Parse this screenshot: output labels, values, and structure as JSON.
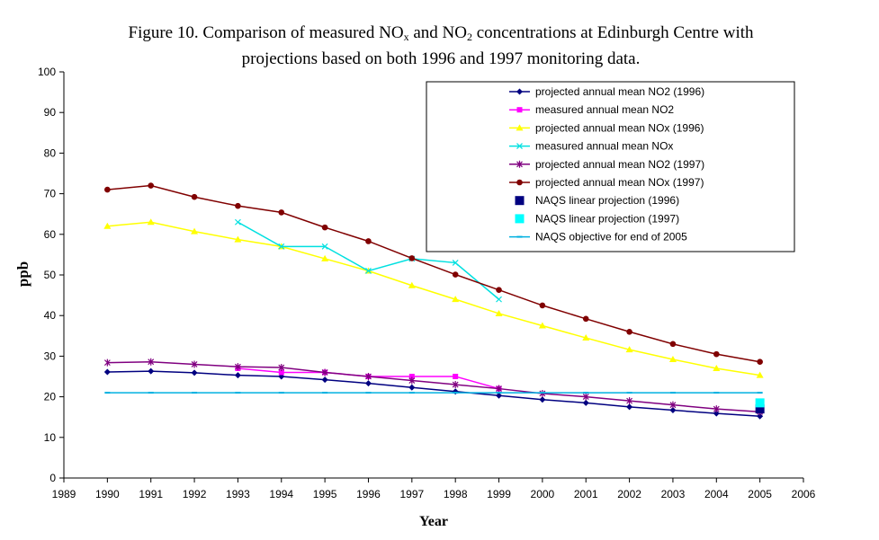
{
  "title": {
    "line1_a": "Figure 10. Comparison of measured NO",
    "line1_sub1": "x",
    "line1_b": " and NO",
    "line1_sub2": "2",
    "line1_c": " concentrations at Edinburgh Centre with",
    "line2": "projections based on both 1996 and 1997 monitoring data."
  },
  "chart_data": {
    "type": "line",
    "xlabel": "Year",
    "ylabel": "ppb",
    "xlim": [
      1989,
      2006
    ],
    "ylim": [
      0,
      100
    ],
    "x_ticks": [
      "1989",
      "1990",
      "1991",
      "1992",
      "1993",
      "1994",
      "1995",
      "1996",
      "1997",
      "1998",
      "1999",
      "2000",
      "2001",
      "2002",
      "2003",
      "2004",
      "2005",
      "2006"
    ],
    "y_ticks": [
      "0",
      "10",
      "20",
      "30",
      "40",
      "50",
      "60",
      "70",
      "80",
      "90",
      "100"
    ],
    "grid": false,
    "legend_position": "top-right",
    "series": [
      {
        "name": "projected annual mean NO2 (1996)",
        "color": "#000080",
        "marker": "diamond",
        "line": true,
        "x": [
          1990,
          1991,
          1992,
          1993,
          1994,
          1995,
          1996,
          1997,
          1998,
          1999,
          2000,
          2001,
          2002,
          2003,
          2004,
          2005
        ],
        "y": [
          26.1,
          26.3,
          25.9,
          25.3,
          25.0,
          24.2,
          23.3,
          22.3,
          21.3,
          20.3,
          19.3,
          18.5,
          17.5,
          16.7,
          15.9,
          15.2
        ]
      },
      {
        "name": "measured annual mean NO2",
        "color": "#ff00ff",
        "marker": "square",
        "line": true,
        "x": [
          1993,
          1994,
          1995,
          1996,
          1997,
          1998,
          1999
        ],
        "y": [
          27,
          26,
          26,
          25,
          25,
          25,
          22
        ]
      },
      {
        "name": "projected annual mean NOx (1996)",
        "color": "#ffff00",
        "marker": "triangle",
        "line": true,
        "x": [
          1990,
          1991,
          1992,
          1993,
          1994,
          1995,
          1996,
          1997,
          1998,
          1999,
          2000,
          2001,
          2002,
          2003,
          2004,
          2005
        ],
        "y": [
          62,
          63,
          60.7,
          58.7,
          57,
          54,
          51,
          47.4,
          44,
          40.5,
          37.5,
          34.5,
          31.6,
          29.2,
          27,
          25.3
        ]
      },
      {
        "name": "measured annual mean NOx",
        "color": "#00e0e0",
        "marker": "x",
        "line": true,
        "x": [
          1993,
          1994,
          1995,
          1996,
          1997,
          1998,
          1999
        ],
        "y": [
          63,
          57,
          57,
          51,
          54,
          53,
          44
        ]
      },
      {
        "name": "projected annual mean NO2 (1997)",
        "color": "#800080",
        "marker": "star",
        "line": true,
        "x": [
          1990,
          1991,
          1992,
          1993,
          1994,
          1995,
          1996,
          1997,
          1998,
          1999,
          2000,
          2001,
          2002,
          2003,
          2004,
          2005
        ],
        "y": [
          28.4,
          28.6,
          28,
          27.4,
          27.2,
          26,
          25,
          24,
          23,
          22,
          20.8,
          20,
          19,
          18,
          17,
          16.3
        ]
      },
      {
        "name": "projected annual mean NOx (1997)",
        "color": "#800000",
        "marker": "circle",
        "line": true,
        "x": [
          1990,
          1991,
          1992,
          1993,
          1994,
          1995,
          1996,
          1997,
          1998,
          1999,
          2000,
          2001,
          2002,
          2003,
          2004,
          2005
        ],
        "y": [
          71,
          72,
          69.2,
          67,
          65.4,
          61.7,
          58.3,
          54.1,
          50.1,
          46.3,
          42.5,
          39.2,
          36,
          33,
          30.5,
          28.6
        ]
      },
      {
        "name": "NAQS linear projection (1996)",
        "color": "#000080",
        "marker": "bigsquare",
        "line": false,
        "x": [
          2005
        ],
        "y": [
          17
        ]
      },
      {
        "name": "NAQS linear projection (1997)",
        "color": "#00ffff",
        "marker": "bigsquare",
        "line": false,
        "x": [
          2005
        ],
        "y": [
          18.5
        ]
      },
      {
        "name": "NAQS objective for end of 2005",
        "color": "#00b0e0",
        "marker": "dash",
        "line": true,
        "x": [
          1990,
          1991,
          1992,
          1993,
          1994,
          1995,
          1996,
          1997,
          1998,
          1999,
          2000,
          2001,
          2002,
          2003,
          2004,
          2005
        ],
        "y": [
          21,
          21,
          21,
          21,
          21,
          21,
          21,
          21,
          21,
          21,
          21,
          21,
          21,
          21,
          21,
          21
        ]
      }
    ]
  }
}
